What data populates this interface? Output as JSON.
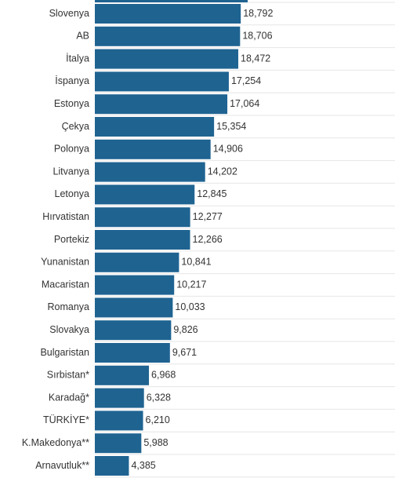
{
  "chart_data": {
    "type": "bar",
    "orientation": "horizontal",
    "title": "",
    "xlabel": "",
    "ylabel": "",
    "categories": [
      "Slovenya",
      "AB",
      "İtalya",
      "İspanya",
      "Estonya",
      "Çekya",
      "Polonya",
      "Litvanya",
      "Letonya",
      "Hırvatistan",
      "Portekiz",
      "Yunanistan",
      "Macaristan",
      "Romanya",
      "Slovakya",
      "Bulgaristan",
      "Sırbistan*",
      "Karadağ*",
      "TÜRKİYE*",
      "K.Makedonya**",
      "Arnavutluk**"
    ],
    "values": [
      18792,
      18706,
      18472,
      17254,
      17064,
      15354,
      14906,
      14202,
      12845,
      12277,
      12266,
      10841,
      10217,
      10033,
      9826,
      9671,
      6968,
      6328,
      6210,
      5988,
      4385
    ],
    "value_labels": [
      "18,792",
      "18,706",
      "18,472",
      "17,254",
      "17,064",
      "15,354",
      "14,906",
      "14,202",
      "12,845",
      "12,277",
      "12,266",
      "10,841",
      "10,217",
      "10,033",
      "9,826",
      "9,671",
      "6,968",
      "6,328",
      "6,210",
      "5,988",
      "4,385"
    ],
    "partial_top_bar": true,
    "grid": true,
    "bar_color": "#1f6391"
  }
}
